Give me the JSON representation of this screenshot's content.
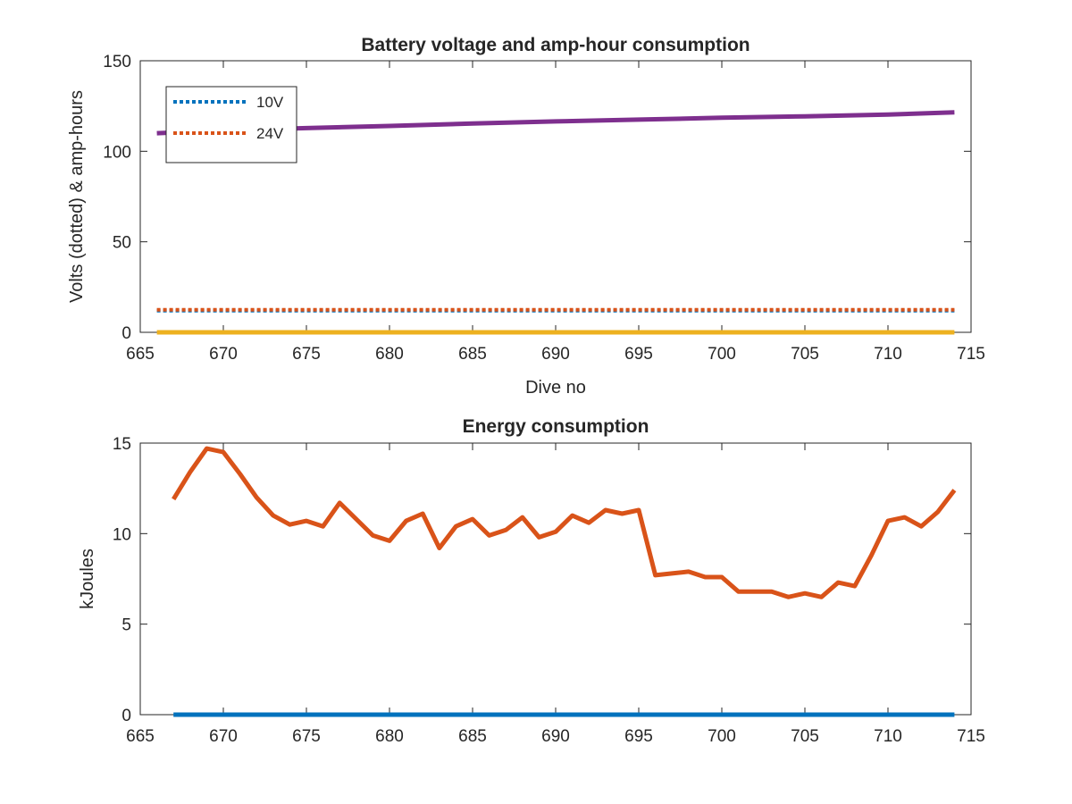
{
  "chart_data": [
    {
      "type": "line",
      "title": "Battery voltage and amp-hour consumption",
      "xlabel": "Dive no",
      "ylabel": "Volts (dotted) & amp-hours",
      "xlim": [
        665,
        715
      ],
      "ylim": [
        0,
        150
      ],
      "xticks": [
        665,
        670,
        675,
        680,
        685,
        690,
        695,
        700,
        705,
        710,
        715
      ],
      "yticks": [
        0,
        50,
        100,
        150
      ],
      "grid": false,
      "legend": "top-left",
      "series": [
        {
          "name": "10V",
          "style": "dotted",
          "color": "#0072BD",
          "x": [
            666,
            714
          ],
          "y": [
            12,
            12
          ]
        },
        {
          "name": "24V",
          "style": "dotted",
          "color": "#D95319",
          "x": [
            666,
            714
          ],
          "y": [
            12.5,
            12.5
          ]
        },
        {
          "style": "solid",
          "color": "#7E2F8E",
          "x": [
            666,
            670,
            675,
            680,
            685,
            690,
            695,
            700,
            705,
            710,
            714
          ],
          "y": [
            110,
            111.5,
            112.8,
            114,
            115.3,
            116.5,
            117.5,
            118.5,
            119.3,
            120.3,
            121.5
          ]
        },
        {
          "style": "solid",
          "color": "#EDB120",
          "x": [
            666,
            714
          ],
          "y": [
            0,
            0
          ]
        }
      ]
    },
    {
      "type": "line",
      "title": "Energy consumption",
      "xlabel": "",
      "ylabel": "kJoules",
      "xlim": [
        665,
        715
      ],
      "ylim": [
        0,
        15
      ],
      "xticks": [
        665,
        670,
        675,
        680,
        685,
        690,
        695,
        700,
        705,
        710,
        715
      ],
      "yticks": [
        0,
        5,
        10,
        15
      ],
      "grid": false,
      "series": [
        {
          "style": "solid",
          "color": "#0072BD",
          "x": [
            667,
            714
          ],
          "y": [
            0,
            0
          ]
        },
        {
          "style": "solid",
          "color": "#D95319",
          "x": [
            667,
            668,
            669,
            670,
            671,
            672,
            673,
            674,
            675,
            676,
            677,
            678,
            679,
            680,
            681,
            682,
            683,
            684,
            685,
            686,
            687,
            688,
            689,
            690,
            691,
            692,
            693,
            694,
            695,
            696,
            697,
            698,
            699,
            700,
            701,
            702,
            703,
            704,
            705,
            706,
            707,
            708,
            709,
            710,
            711,
            712,
            713,
            714
          ],
          "y": [
            11.9,
            13.4,
            14.7,
            14.5,
            13.3,
            12,
            11,
            10.5,
            10.7,
            10.4,
            11.7,
            10.8,
            9.9,
            9.6,
            10.7,
            11.1,
            9.2,
            10.4,
            10.8,
            9.9,
            10.2,
            10.9,
            9.8,
            10.1,
            11,
            10.6,
            11.3,
            11.1,
            11.3,
            7.7,
            7.8,
            7.9,
            7.6,
            7.6,
            6.8,
            6.8,
            6.8,
            6.5,
            6.7,
            6.5,
            7.3,
            7.1,
            8.8,
            10.7,
            10.9,
            10.4,
            11.2,
            12.4
          ]
        }
      ]
    }
  ]
}
